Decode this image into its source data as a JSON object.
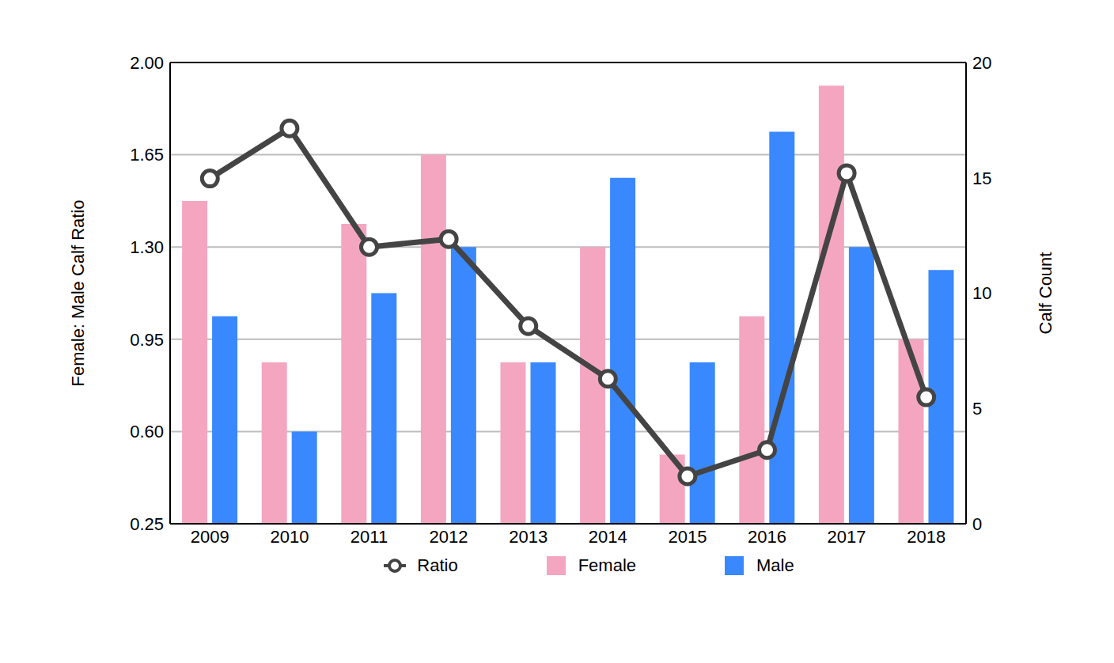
{
  "chart_data": {
    "type": "bar",
    "categories": [
      "2009",
      "2010",
      "2011",
      "2012",
      "2013",
      "2014",
      "2015",
      "2016",
      "2017",
      "2018"
    ],
    "ylabel": "Female: Male Calf Ratio",
    "y2label": "Calf Count",
    "ylim": [
      0.25,
      2.0
    ],
    "yticks": [
      0.25,
      {
        "value": 0.6,
        "label": "0.60"
      },
      0.95,
      {
        "value": 1.3,
        "label": "1.30"
      },
      1.65,
      {
        "value": 2.0,
        "label": "2.00"
      }
    ],
    "y2lim": [
      0,
      20
    ],
    "y2ticks": [
      0,
      5,
      10,
      15,
      20
    ],
    "grid": true,
    "legend": "bottom",
    "series": [
      {
        "name": "Ratio",
        "type": "line",
        "axis": "y",
        "color": "#444444",
        "marker": "circle",
        "values": [
          1.56,
          1.75,
          1.3,
          1.33,
          1.0,
          0.8,
          0.43,
          0.53,
          1.58,
          0.73
        ]
      },
      {
        "name": "Female",
        "type": "bar",
        "axis": "y2",
        "color": "#f4a6c0",
        "values": [
          14,
          7,
          13,
          16,
          7,
          12,
          3,
          9,
          19,
          8
        ]
      },
      {
        "name": "Male",
        "type": "bar",
        "axis": "y2",
        "color": "#3a88fe",
        "values": [
          9,
          4,
          10,
          12,
          7,
          15,
          7,
          17,
          12,
          11
        ]
      }
    ]
  }
}
